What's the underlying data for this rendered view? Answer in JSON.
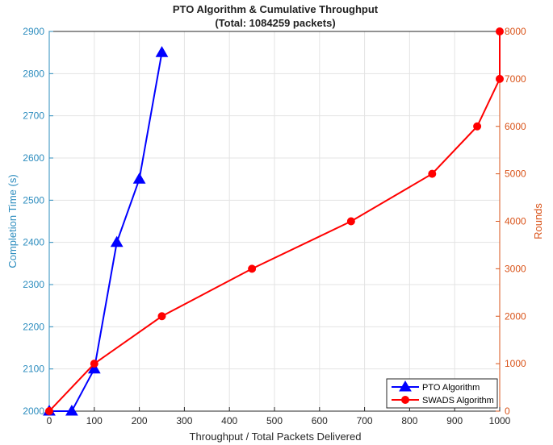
{
  "chart_data": {
    "type": "line",
    "title": "PTO Algorithm & Cumulative Throughput",
    "subtitle": "(Total: 1084259 packets)",
    "xlabel": "Throughput / Total Packets Delivered",
    "ylabel_left": "Completion Time (s)",
    "ylabel_right": "Rounds",
    "xlim": [
      0,
      1000
    ],
    "ylim_left": [
      2000,
      2900
    ],
    "ylim_right": [
      0,
      8000
    ],
    "xticks": [
      "0",
      "100",
      "200",
      "300",
      "400",
      "500",
      "600",
      "700",
      "800",
      "900",
      "1000"
    ],
    "yticks_left": [
      "2000",
      "2100",
      "2200",
      "2300",
      "2400",
      "2500",
      "2600",
      "2700",
      "2800",
      "2900"
    ],
    "yticks_right": [
      "0",
      "1000",
      "2000",
      "3000",
      "4000",
      "5000",
      "6000",
      "7000",
      "8000"
    ],
    "grid": true,
    "legend_position": "bottom-right",
    "left_axis_color": "#2b8cbe",
    "right_axis_color": "#d95319",
    "series": [
      {
        "name": "PTO Algorithm",
        "axis": "left",
        "color": "#0000ff",
        "marker": "triangle",
        "x": [
          0,
          50,
          100,
          150,
          200,
          250
        ],
        "y": [
          2000,
          2000,
          2100,
          2400,
          2550,
          2850
        ]
      },
      {
        "name": "SWADS Algorithm",
        "axis": "right",
        "color": "#ff0000",
        "marker": "circle",
        "x": [
          0,
          100,
          250,
          450,
          670,
          850,
          950,
          1000,
          1000
        ],
        "y": [
          0,
          1000,
          2000,
          3000,
          4000,
          5000,
          6000,
          7000,
          8000
        ]
      }
    ]
  }
}
